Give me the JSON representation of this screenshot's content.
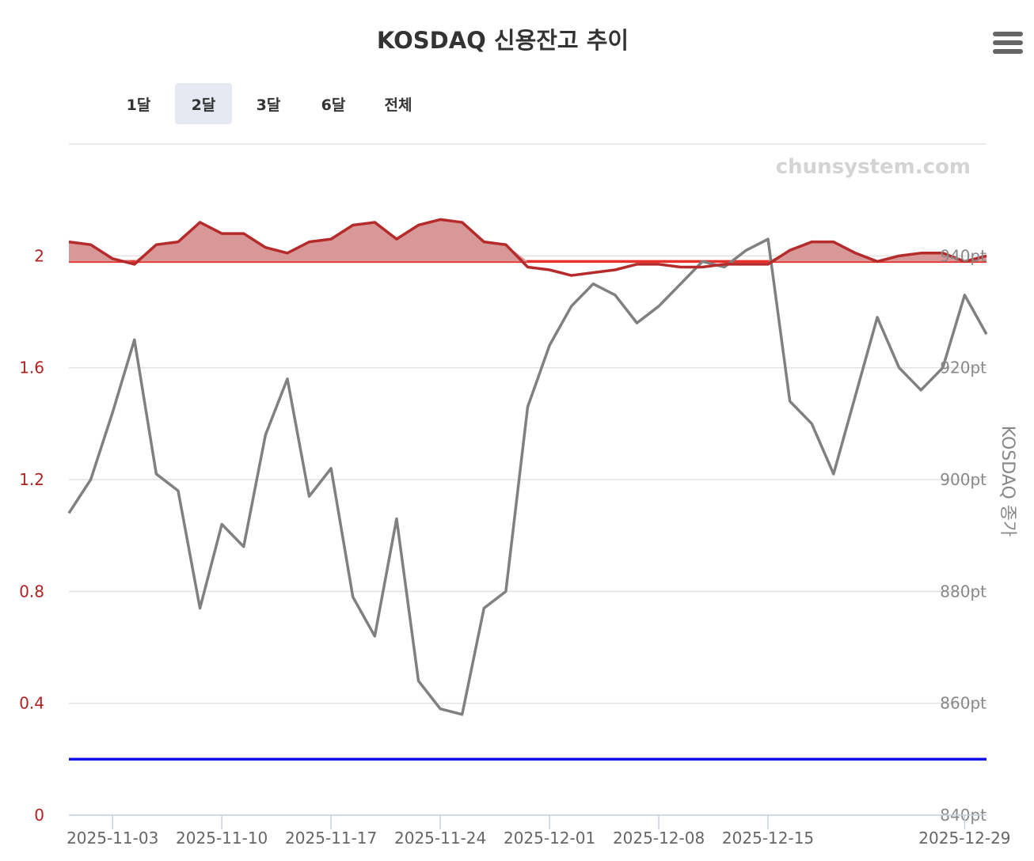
{
  "chart_data": {
    "type": "line",
    "title": "KOSDAQ 신용잔고 추이",
    "watermark": "chunsystem.com",
    "range_buttons": [
      "1달",
      "2달",
      "3달",
      "6달",
      "전체"
    ],
    "selected_range": "2달",
    "y_left": {
      "min": 0,
      "max": 2.4,
      "ticks": [
        0,
        0.4,
        0.8,
        1.2,
        1.6,
        2
      ],
      "tick_labels": [
        "0",
        "0.4",
        "0.8",
        "1.2",
        "1.6",
        "2"
      ],
      "color": "#b02222"
    },
    "y_right": {
      "title": "KOSDAQ 종가",
      "min": 840,
      "max": 960,
      "ticks": [
        840,
        860,
        880,
        900,
        920,
        940
      ],
      "tick_labels": [
        "840pt",
        "860pt",
        "880pt",
        "900pt",
        "920pt",
        "940pt"
      ],
      "color": "#888888"
    },
    "x_tick_labels": [
      "2025-11-03",
      "2025-11-10",
      "2025-11-17",
      "2025-11-24",
      "2025-12-01",
      "2025-12-08",
      "2025-12-15",
      "2025-12-29"
    ],
    "x_tick_index": [
      2,
      7,
      12,
      17,
      22,
      27,
      32,
      41
    ],
    "series": [
      {
        "axis": "left",
        "color": "#b52a2a",
        "fill_above": "#d99898",
        "baseline": 1.98,
        "values": [
          2.05,
          2.04,
          1.99,
          1.97,
          2.04,
          2.05,
          2.12,
          2.08,
          2.08,
          2.03,
          2.01,
          2.05,
          2.06,
          2.11,
          2.12,
          2.06,
          2.11,
          2.13,
          2.12,
          2.05,
          2.04,
          1.96,
          1.95,
          1.93,
          1.94,
          1.95,
          1.97,
          1.97,
          1.96,
          1.96,
          1.97,
          1.97,
          1.97,
          2.02,
          2.05,
          2.05,
          2.01,
          1.98,
          2.0,
          2.01,
          2.01,
          1.98,
          2.0
        ]
      },
      {
        "axis": "right",
        "color": "#808080",
        "values": [
          894,
          900,
          912,
          925,
          901,
          898,
          877,
          892,
          888,
          908,
          918,
          897,
          902,
          879,
          872,
          893,
          864,
          859,
          858,
          877,
          880,
          913,
          924,
          931,
          935,
          933,
          928,
          931,
          935,
          939,
          938,
          941,
          943,
          914,
          910,
          901,
          915,
          929,
          920,
          916,
          920,
          933,
          926
        ]
      }
    ],
    "reference_lines": [
      {
        "axis": "left",
        "value": 1.98,
        "color": "#e8302a"
      },
      {
        "axis": "left",
        "value": 0.2,
        "color": "#1010e8"
      }
    ]
  }
}
